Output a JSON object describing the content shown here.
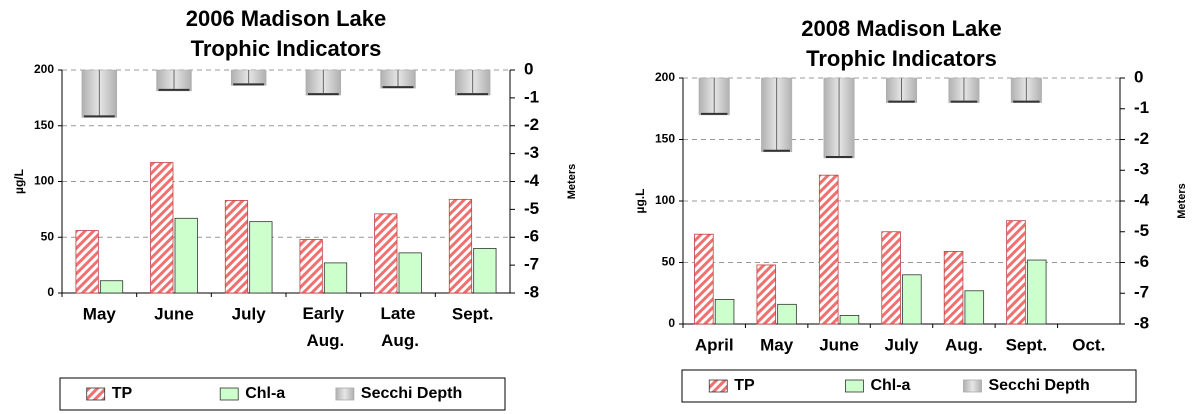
{
  "chart_data": [
    {
      "type": "bar",
      "title": [
        "2006 Madison Lake",
        "Trophic Indicators"
      ],
      "y_label": "µg/L",
      "y2_label": "Meters",
      "categories": [
        "May",
        "June",
        "July",
        "Early Aug.",
        "Late Aug.",
        "Sept."
      ],
      "series": [
        {
          "name": "TP",
          "color": "#f07070",
          "values": [
            56,
            117,
            83,
            48,
            71,
            84
          ]
        },
        {
          "name": "Chl-a",
          "color": "#ccffcc",
          "values": [
            11,
            67,
            64,
            27,
            36,
            40
          ]
        },
        {
          "name": "Secchi Depth",
          "color": "#c8c8c8",
          "axis": "y2",
          "values": [
            -1.7,
            -0.75,
            -0.55,
            -0.9,
            -0.65,
            -0.9
          ]
        }
      ],
      "ylim": [
        0,
        200
      ],
      "yticks": [
        0,
        50,
        100,
        150,
        200
      ],
      "y2lim": [
        -8,
        0
      ],
      "y2ticks": [
        0,
        -1,
        -2,
        -3,
        -4,
        -5,
        -6,
        -7,
        -8
      ],
      "grid": true,
      "legend": "bottom"
    },
    {
      "type": "bar",
      "title": [
        "2008 Madison Lake",
        "Trophic Indicators"
      ],
      "y_label": "µg.L",
      "y2_label": "Meters",
      "categories": [
        "April",
        "May",
        "June",
        "July",
        "Aug.",
        "Sept.",
        "Oct."
      ],
      "series": [
        {
          "name": "TP",
          "color": "#f07070",
          "values": [
            73,
            48,
            121,
            75,
            59,
            84,
            null
          ]
        },
        {
          "name": "Chl-a",
          "color": "#ccffcc",
          "values": [
            20,
            16,
            7,
            40,
            27,
            52,
            null
          ]
        },
        {
          "name": "Secchi Depth",
          "color": "#c8c8c8",
          "axis": "y2",
          "values": [
            -1.2,
            -2.4,
            -2.6,
            -0.8,
            -0.8,
            -0.8,
            null
          ]
        }
      ],
      "ylim": [
        0,
        200
      ],
      "yticks": [
        0,
        50,
        100,
        150,
        200
      ],
      "y2lim": [
        -8,
        0
      ],
      "y2ticks": [
        0,
        -1,
        -2,
        -3,
        -4,
        -5,
        -6,
        -7,
        -8
      ],
      "grid": true,
      "legend": "bottom"
    }
  ]
}
